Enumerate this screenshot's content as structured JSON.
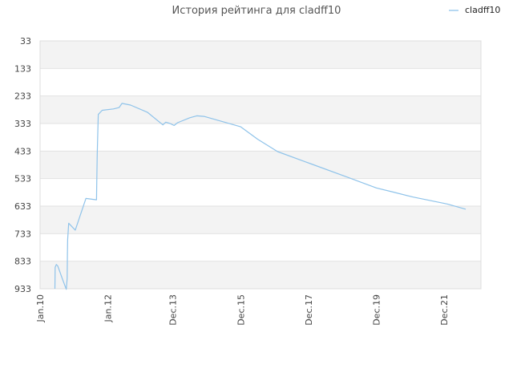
{
  "chart_data": {
    "type": "line",
    "title": "История рейтинга для cladff10",
    "xlabel": "",
    "ylabel": "",
    "y_inverted": true,
    "ylim": [
      933,
      33
    ],
    "yticks": [
      33,
      133,
      233,
      333,
      433,
      533,
      633,
      733,
      833,
      933
    ],
    "xlim": [
      "2010-01-01",
      "2022-12-31"
    ],
    "xticks": [
      {
        "label": "Jan.10",
        "date": "2010-01-01"
      },
      {
        "label": "Jan.12",
        "date": "2012-01-01"
      },
      {
        "label": "Dec.13",
        "date": "2013-12-01"
      },
      {
        "label": "Dec.15",
        "date": "2015-12-01"
      },
      {
        "label": "Dec.17",
        "date": "2017-12-01"
      },
      {
        "label": "Dec.19",
        "date": "2019-12-01"
      },
      {
        "label": "Dec.21",
        "date": "2021-12-01"
      }
    ],
    "grid": true,
    "legend_position": "top-right",
    "series": [
      {
        "name": "cladff10",
        "color": "#8fc3ea",
        "points": [
          {
            "x": "2010-06-10",
            "y": 933
          },
          {
            "x": "2010-06-12",
            "y": 855
          },
          {
            "x": "2010-06-25",
            "y": 845
          },
          {
            "x": "2010-07-10",
            "y": 850
          },
          {
            "x": "2010-09-01",
            "y": 900
          },
          {
            "x": "2010-10-10",
            "y": 935
          },
          {
            "x": "2010-10-20",
            "y": 895
          },
          {
            "x": "2010-10-22",
            "y": 810
          },
          {
            "x": "2010-10-25",
            "y": 755
          },
          {
            "x": "2010-11-05",
            "y": 695
          },
          {
            "x": "2011-01-15",
            "y": 720
          },
          {
            "x": "2011-05-10",
            "y": 605
          },
          {
            "x": "2011-09-01",
            "y": 610
          },
          {
            "x": "2011-09-03",
            "y": 550
          },
          {
            "x": "2011-09-08",
            "y": 445
          },
          {
            "x": "2011-09-20",
            "y": 300
          },
          {
            "x": "2011-11-01",
            "y": 285
          },
          {
            "x": "2012-03-01",
            "y": 280
          },
          {
            "x": "2012-05-01",
            "y": 275
          },
          {
            "x": "2012-06-01",
            "y": 260
          },
          {
            "x": "2012-09-01",
            "y": 266
          },
          {
            "x": "2013-03-01",
            "y": 292
          },
          {
            "x": "2013-08-15",
            "y": 338
          },
          {
            "x": "2013-09-15",
            "y": 328
          },
          {
            "x": "2013-11-01",
            "y": 333
          },
          {
            "x": "2013-12-15",
            "y": 340
          },
          {
            "x": "2014-01-20",
            "y": 330
          },
          {
            "x": "2014-06-01",
            "y": 312
          },
          {
            "x": "2014-08-15",
            "y": 305
          },
          {
            "x": "2014-11-01",
            "y": 307
          },
          {
            "x": "2015-12-01",
            "y": 345
          },
          {
            "x": "2016-06-01",
            "y": 390
          },
          {
            "x": "2017-01-01",
            "y": 435
          },
          {
            "x": "2018-01-01",
            "y": 480
          },
          {
            "x": "2019-01-01",
            "y": 525
          },
          {
            "x": "2019-12-01",
            "y": 567
          },
          {
            "x": "2020-06-01",
            "y": 582
          },
          {
            "x": "2021-01-01",
            "y": 600
          },
          {
            "x": "2022-01-01",
            "y": 625
          },
          {
            "x": "2022-07-20",
            "y": 644
          }
        ]
      }
    ]
  }
}
